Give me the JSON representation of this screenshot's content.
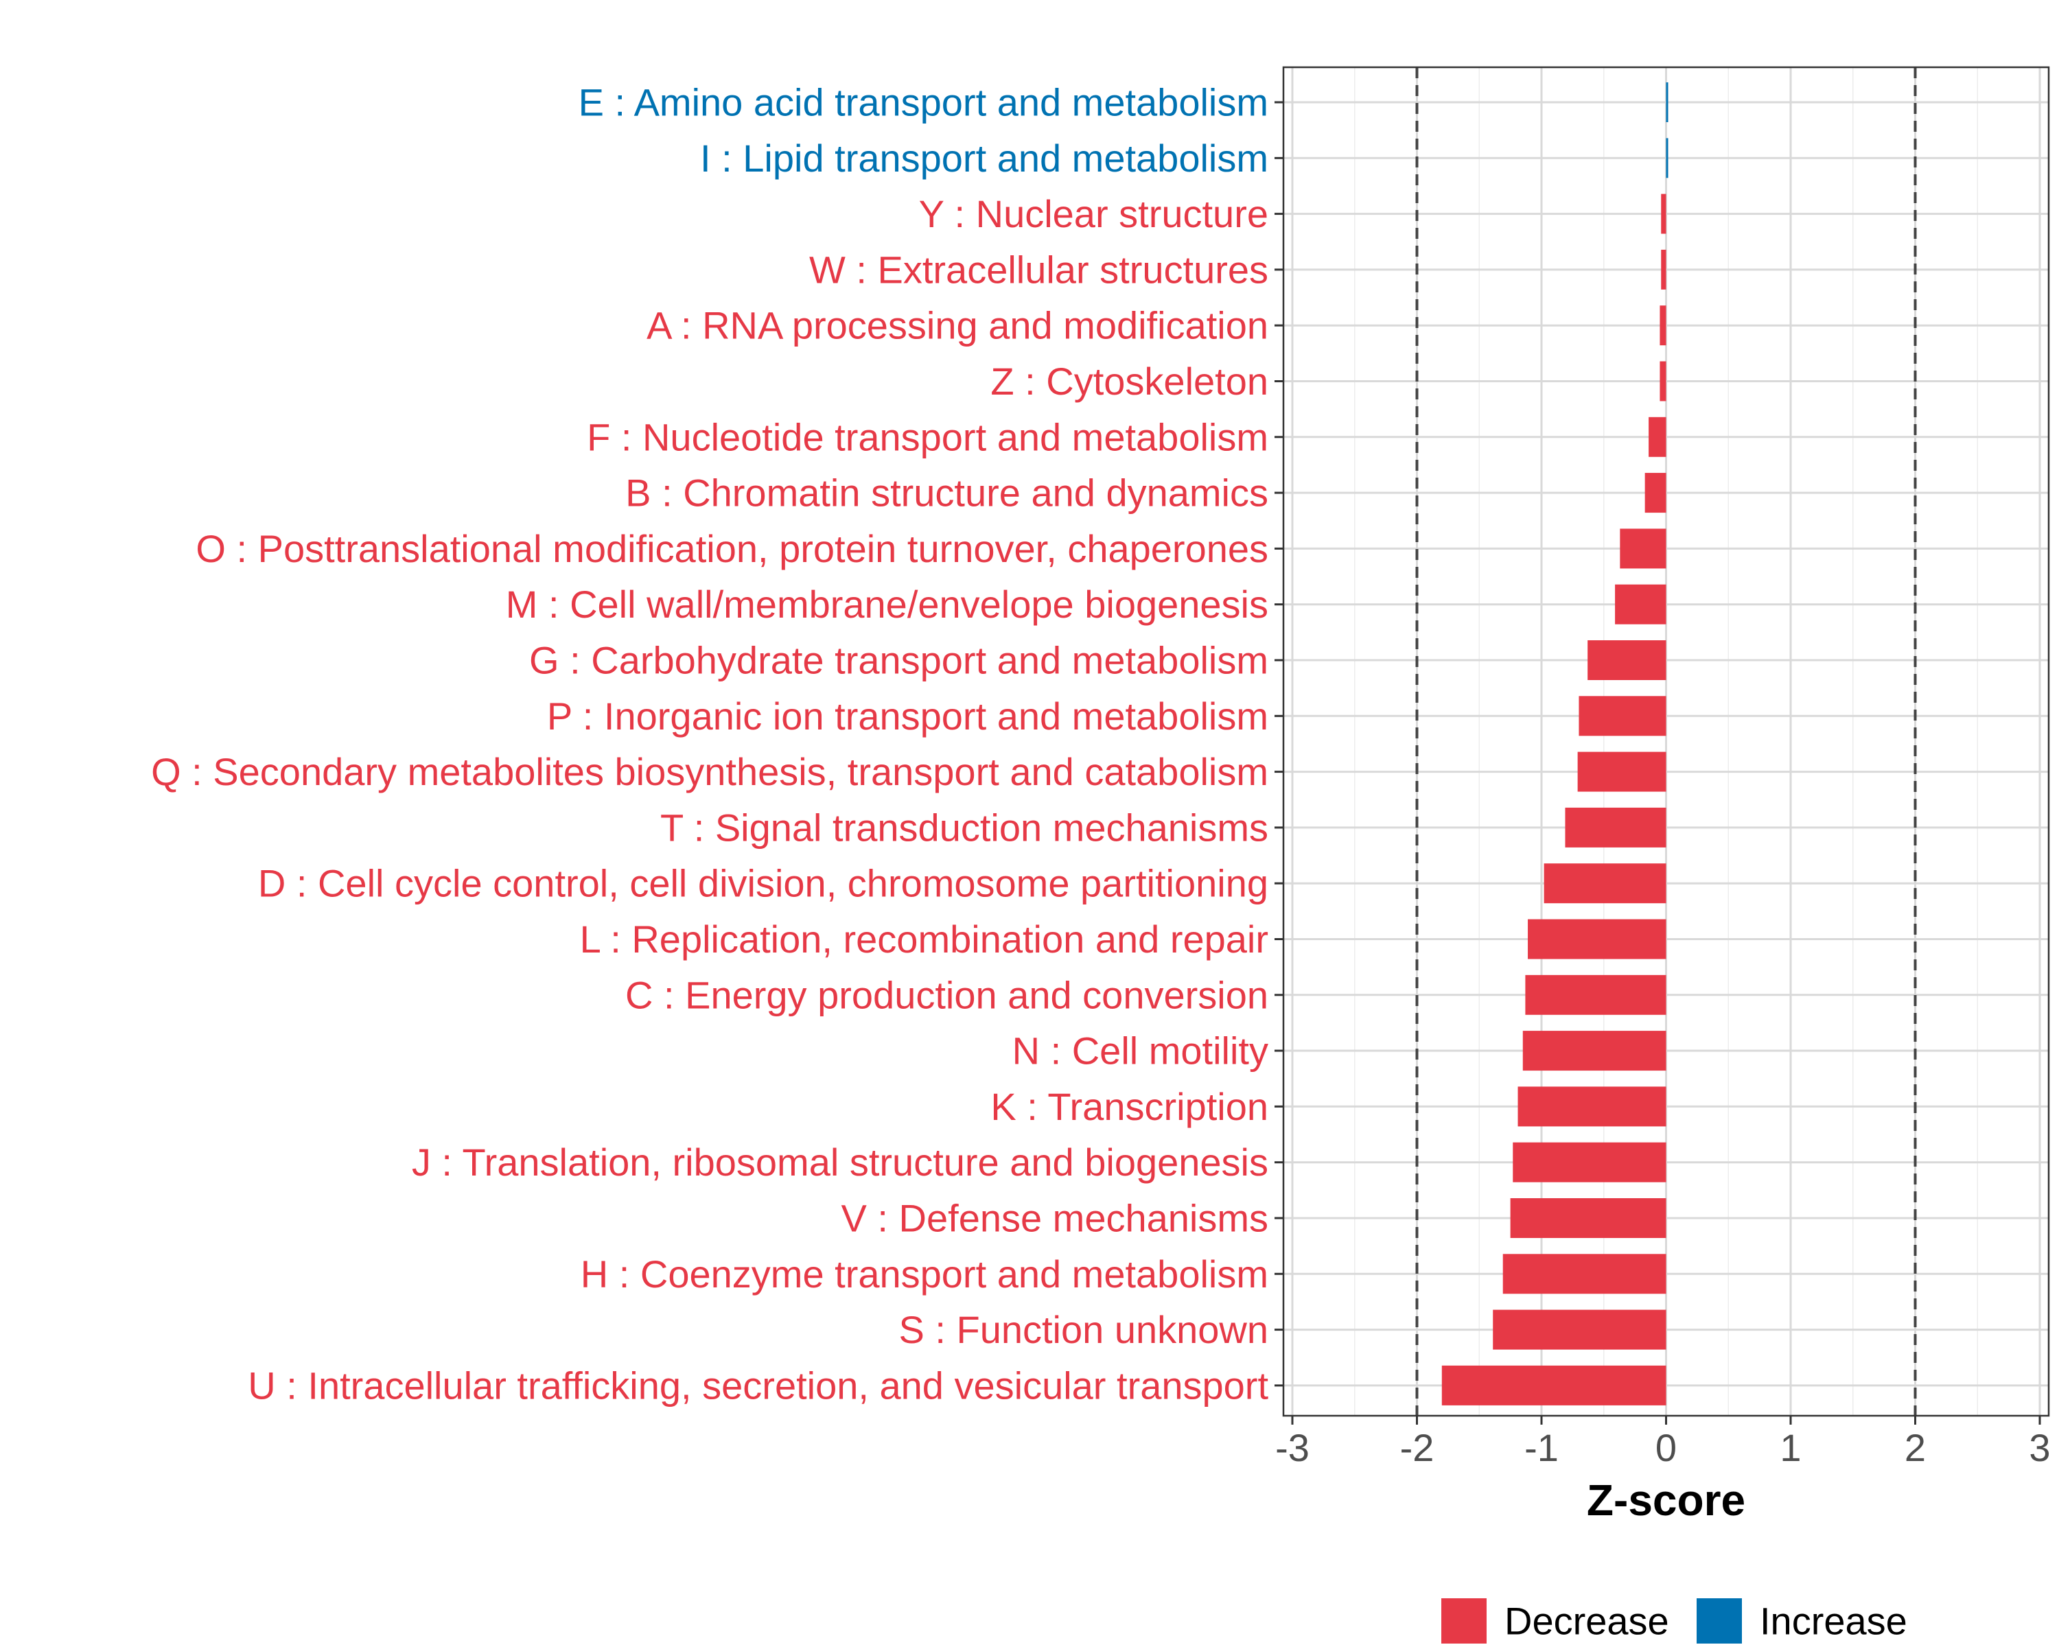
{
  "chart_data": {
    "type": "bar",
    "orientation": "horizontal",
    "xlabel": "Z-score",
    "ylabel": "",
    "xlim": [
      -3,
      3
    ],
    "x_ticks": [
      -3,
      -2,
      -1,
      0,
      1,
      2,
      3
    ],
    "x_tick_labels": [
      "-3",
      "-2",
      "-1",
      "0",
      "1",
      "2",
      "3"
    ],
    "reference_lines": [
      -2,
      2
    ],
    "grid": true,
    "colors": {
      "Decrease": "#e63946",
      "Increase": "#0072b2"
    },
    "legend": {
      "position": "bottom",
      "items": [
        {
          "label": "Decrease",
          "color": "#e63946"
        },
        {
          "label": "Increase",
          "color": "#0072b2"
        }
      ]
    },
    "categories": [
      "E : Amino acid transport and metabolism",
      "I : Lipid transport and metabolism",
      "Y : Nuclear structure",
      "W : Extracellular structures",
      "A : RNA processing and modification",
      "Z : Cytoskeleton",
      "F : Nucleotide transport and metabolism",
      "B : Chromatin structure and dynamics",
      "O : Posttranslational modification, protein turnover, chaperones",
      "M : Cell wall/membrane/envelope biogenesis",
      "G : Carbohydrate transport and metabolism",
      "P : Inorganic ion transport and metabolism",
      "Q : Secondary metabolites biosynthesis, transport and catabolism",
      "T : Signal transduction mechanisms",
      "D : Cell cycle control, cell division, chromosome partitioning",
      "L : Replication, recombination and repair",
      "C : Energy production and conversion",
      "N : Cell motility",
      "K : Transcription",
      "J : Translation, ribosomal structure and biogenesis",
      "V : Defense mechanisms",
      "H : Coenzyme transport and metabolism",
      "S : Function unknown",
      "U : Intracellular trafficking, secretion, and vesicular transport"
    ],
    "values": [
      0.01,
      0.01,
      -0.04,
      -0.04,
      -0.05,
      -0.05,
      -0.14,
      -0.17,
      -0.37,
      -0.41,
      -0.63,
      -0.7,
      -0.71,
      -0.81,
      -0.98,
      -1.11,
      -1.13,
      -1.15,
      -1.19,
      -1.23,
      -1.25,
      -1.31,
      -1.39,
      -1.8
    ],
    "groups": [
      "Increase",
      "Increase",
      "Decrease",
      "Decrease",
      "Decrease",
      "Decrease",
      "Decrease",
      "Decrease",
      "Decrease",
      "Decrease",
      "Decrease",
      "Decrease",
      "Decrease",
      "Decrease",
      "Decrease",
      "Decrease",
      "Decrease",
      "Decrease",
      "Decrease",
      "Decrease",
      "Decrease",
      "Decrease",
      "Decrease",
      "Decrease"
    ]
  }
}
